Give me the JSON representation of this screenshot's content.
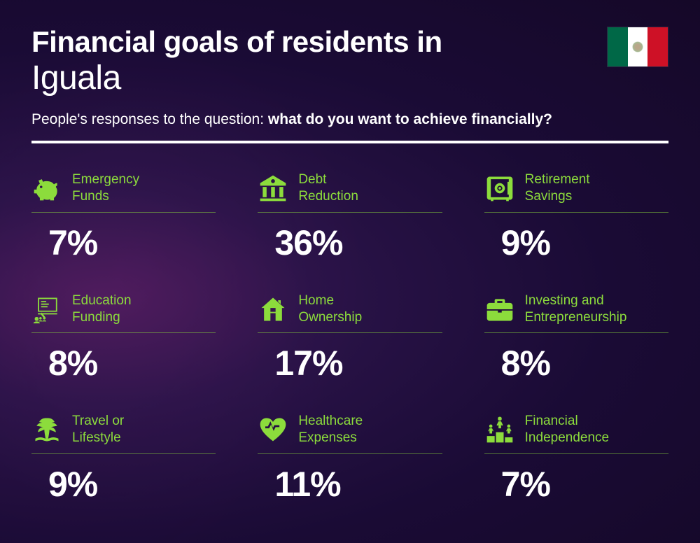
{
  "header": {
    "title_line1": "Financial goals of residents in",
    "title_line2": "Iguala",
    "subtitle_prefix": "People's responses to the question: ",
    "subtitle_bold": "what do you want to achieve financially?"
  },
  "flag": {
    "name": "mexico-flag",
    "stripes": [
      "#006847",
      "#ffffff",
      "#ce1126"
    ]
  },
  "styling": {
    "accent_color": "#8cdc3c",
    "text_color": "#ffffff",
    "background_gradient": [
      "#4a1a5a",
      "#2a1348",
      "#1a0b35",
      "#150828"
    ],
    "title_fontsize": 42,
    "city_fontsize": 48,
    "subtitle_fontsize": 21,
    "label_fontsize": 19,
    "value_fontsize": 50,
    "grid_columns": 3,
    "grid_rows": 3,
    "divider_color": "#ffffff",
    "divider_height": 4,
    "item_underline_color": "rgba(140,220,60,0.5)"
  },
  "items": [
    {
      "icon": "piggy-bank-icon",
      "label": "Emergency\nFunds",
      "value": "7%"
    },
    {
      "icon": "bank-icon",
      "label": "Debt\nReduction",
      "value": "36%"
    },
    {
      "icon": "safe-icon",
      "label": "Retirement\nSavings",
      "value": "9%"
    },
    {
      "icon": "presentation-icon",
      "label": "Education\nFunding",
      "value": "8%"
    },
    {
      "icon": "house-icon",
      "label": "Home\nOwnership",
      "value": "17%"
    },
    {
      "icon": "briefcase-icon",
      "label": "Investing and\nEntrepreneurship",
      "value": "8%"
    },
    {
      "icon": "palm-tree-icon",
      "label": "Travel or\nLifestyle",
      "value": "9%"
    },
    {
      "icon": "heart-pulse-icon",
      "label": "Healthcare\nExpenses",
      "value": "11%"
    },
    {
      "icon": "podium-icon",
      "label": "Financial\nIndependence",
      "value": "7%"
    }
  ]
}
